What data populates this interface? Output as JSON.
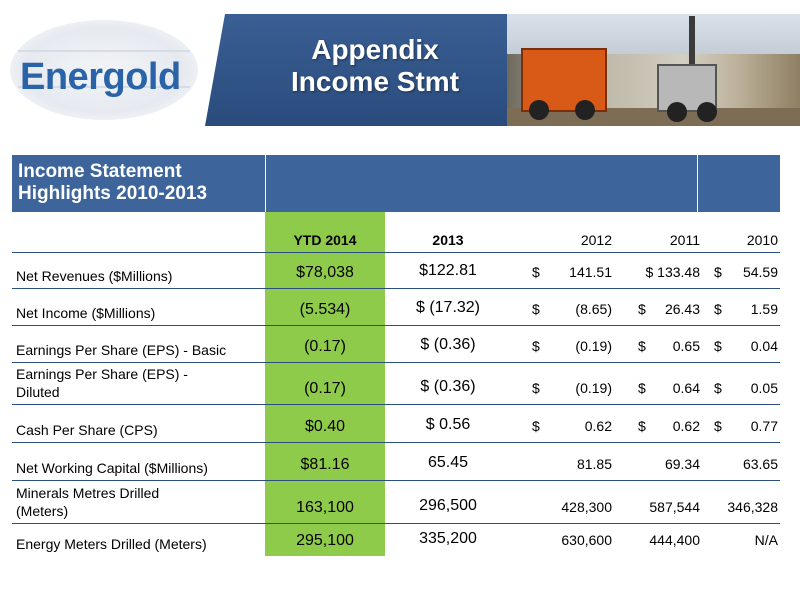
{
  "logo": {
    "text": "Energold"
  },
  "banner": {
    "title_line1": "Appendix",
    "title_line2": "Income Stmt"
  },
  "table": {
    "title_line1": "Income Statement",
    "title_line2": "Highlights 2010-2013",
    "columns": [
      "YTD 2014",
      "2013",
      "2012",
      "2011",
      "2010"
    ],
    "rows": [
      {
        "label": [
          "Net Revenues ($Millions)"
        ],
        "ytd": "$78,038",
        "y2013": "$122.81",
        "y2012": [
          "$",
          "141.51"
        ],
        "y2011": [
          "$ 133.48"
        ],
        "y2010": [
          "$",
          "54.59"
        ]
      },
      {
        "label": [
          "Net Income ($Millions)"
        ],
        "ytd": "(5.534)",
        "y2013": "$ (17.32)",
        "y2012": [
          "$",
          "(8.65)"
        ],
        "y2011": [
          "$",
          "26.43"
        ],
        "y2010": [
          "$",
          "1.59"
        ]
      },
      {
        "label": [
          "Earnings Per Share (EPS) - Basic"
        ],
        "ytd": "(0.17)",
        "y2013": "$ (0.36)",
        "y2012": [
          "$",
          "(0.19)"
        ],
        "y2011": [
          "$",
          "0.65"
        ],
        "y2010": [
          "$",
          "0.04"
        ]
      },
      {
        "label": [
          "Earnings Per Share (EPS) -",
          "Diluted"
        ],
        "ytd": "(0.17)",
        "y2013": "$ (0.36)",
        "y2012": [
          "$",
          "(0.19)"
        ],
        "y2011": [
          "$",
          "0.64"
        ],
        "y2010": [
          "$",
          "0.05"
        ]
      },
      {
        "label": [
          "Cash Per Share (CPS)"
        ],
        "ytd": "$0.40",
        "y2013": "$ 0.56",
        "y2012": [
          "$",
          "0.62"
        ],
        "y2011": [
          "$",
          "0.62"
        ],
        "y2010": [
          "$",
          "0.77"
        ]
      },
      {
        "label": [
          "Net Working Capital ($Millions)"
        ],
        "ytd": "$81.16",
        "y2013": "65.45",
        "y2012": [
          "",
          "81.85"
        ],
        "y2011": [
          "",
          "69.34"
        ],
        "y2010": [
          "",
          "63.65"
        ]
      },
      {
        "label": [
          "Minerals Metres Drilled",
          "(Meters)"
        ],
        "ytd": "163,100",
        "y2013": "296,500",
        "y2012": [
          "",
          "428,300"
        ],
        "y2011": [
          "",
          "587,544"
        ],
        "y2010": [
          "",
          "346,328"
        ]
      },
      {
        "label": [
          "Energy  Meters Drilled (Meters)"
        ],
        "ytd": "295,100",
        "y2013": "335,200",
        "y2012": [
          "",
          "630,600"
        ],
        "y2011": [
          "",
          "444,400"
        ],
        "y2010": [
          "",
          "N/A"
        ]
      }
    ]
  },
  "colors": {
    "banner": "#2a4b7c",
    "table_header": "#3d659b",
    "ytd_highlight": "#8fcb4a",
    "logo": "#2a63a8"
  }
}
